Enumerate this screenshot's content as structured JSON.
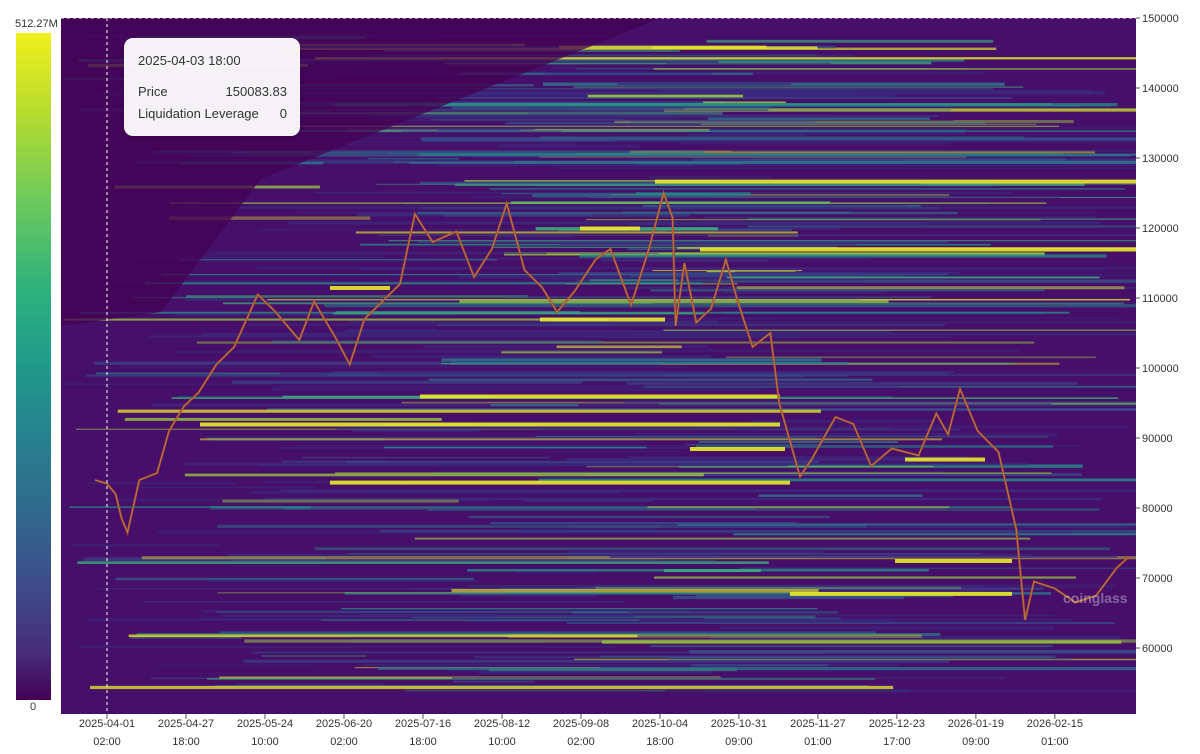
{
  "colorbar": {
    "max_label": "512.27M",
    "min_label": "0"
  },
  "tooltip": {
    "time": "2025-04-03 18:00",
    "price_label": "Price",
    "price_value": "150083.83",
    "leverage_label": "Liquidation Leverage",
    "leverage_value": "0"
  },
  "watermark": "coinglass",
  "chart_data": {
    "type": "heatmap",
    "title": "",
    "y_axis_ticks": [
      60000,
      70000,
      80000,
      90000,
      100000,
      110000,
      120000,
      130000,
      140000,
      150000
    ],
    "ylim": [
      51000,
      150000
    ],
    "color_scale": {
      "min": 0,
      "max_label": "512.27M"
    },
    "x_axis_ticks": [
      {
        "date": "2025-04-01",
        "time": "02:00"
      },
      {
        "date": "2025-04-27",
        "time": "18:00"
      },
      {
        "date": "2025-05-24",
        "time": "10:00"
      },
      {
        "date": "2025-06-20",
        "time": "02:00"
      },
      {
        "date": "2025-07-16",
        "time": "18:00"
      },
      {
        "date": "2025-08-12",
        "time": "10:00"
      },
      {
        "date": "2025-09-08",
        "time": "02:00"
      },
      {
        "date": "2025-10-04",
        "time": "18:00"
      },
      {
        "date": "2025-10-31",
        "time": "09:00"
      },
      {
        "date": "2025-11-27",
        "time": "01:00"
      },
      {
        "date": "2025-12-23",
        "time": "17:00"
      },
      {
        "date": "2026-01-19",
        "time": "09:00"
      },
      {
        "date": "2026-02-15",
        "time": "01:00"
      }
    ],
    "price_series": [
      [
        "2025-03-28",
        84000
      ],
      [
        "2025-04-01",
        83500
      ],
      [
        "2025-04-04",
        82000
      ],
      [
        "2025-04-06",
        78500
      ],
      [
        "2025-04-08",
        76500
      ],
      [
        "2025-04-12",
        84000
      ],
      [
        "2025-04-18",
        85000
      ],
      [
        "2025-04-22",
        91000
      ],
      [
        "2025-04-27",
        94500
      ],
      [
        "2025-05-02",
        96500
      ],
      [
        "2025-05-08",
        100500
      ],
      [
        "2025-05-14",
        103000
      ],
      [
        "2025-05-22",
        110500
      ],
      [
        "2025-05-28",
        108000
      ],
      [
        "2025-06-05",
        104000
      ],
      [
        "2025-06-10",
        109500
      ],
      [
        "2025-06-17",
        104500
      ],
      [
        "2025-06-22",
        100500
      ],
      [
        "2025-06-27",
        107000
      ],
      [
        "2025-07-03",
        109500
      ],
      [
        "2025-07-09",
        112000
      ],
      [
        "2025-07-14",
        122000
      ],
      [
        "2025-07-20",
        118000
      ],
      [
        "2025-07-28",
        119500
      ],
      [
        "2025-08-03",
        113000
      ],
      [
        "2025-08-09",
        117000
      ],
      [
        "2025-08-14",
        123500
      ],
      [
        "2025-08-20",
        114000
      ],
      [
        "2025-08-26",
        111500
      ],
      [
        "2025-08-31",
        108000
      ],
      [
        "2025-09-06",
        111000
      ],
      [
        "2025-09-13",
        115500
      ],
      [
        "2025-09-18",
        117000
      ],
      [
        "2025-09-25",
        109000
      ],
      [
        "2025-10-01",
        117000
      ],
      [
        "2025-10-06",
        125000
      ],
      [
        "2025-10-09",
        121500
      ],
      [
        "2025-10-10",
        106000
      ],
      [
        "2025-10-13",
        115000
      ],
      [
        "2025-10-17",
        106500
      ],
      [
        "2025-10-22",
        108500
      ],
      [
        "2025-10-27",
        115500
      ],
      [
        "2025-10-31",
        109500
      ],
      [
        "2025-11-05",
        103000
      ],
      [
        "2025-11-11",
        105000
      ],
      [
        "2025-11-14",
        95000
      ],
      [
        "2025-11-21",
        84500
      ],
      [
        "2025-11-25",
        87000
      ],
      [
        "2025-12-03",
        93000
      ],
      [
        "2025-12-09",
        92000
      ],
      [
        "2025-12-15",
        86000
      ],
      [
        "2025-12-22",
        88500
      ],
      [
        "2025-12-31",
        87500
      ],
      [
        "2026-01-06",
        93500
      ],
      [
        "2026-01-10",
        90500
      ],
      [
        "2026-01-14",
        97000
      ],
      [
        "2026-01-20",
        91000
      ],
      [
        "2026-01-27",
        88000
      ],
      [
        "2026-02-02",
        77000
      ],
      [
        "2026-02-05",
        64000
      ],
      [
        "2026-02-08",
        69500
      ],
      [
        "2026-02-15",
        68500
      ],
      [
        "2026-02-22",
        66500
      ],
      [
        "2026-03-01",
        67500
      ],
      [
        "2026-03-08",
        71500
      ],
      [
        "2026-03-12",
        73000
      ]
    ]
  }
}
